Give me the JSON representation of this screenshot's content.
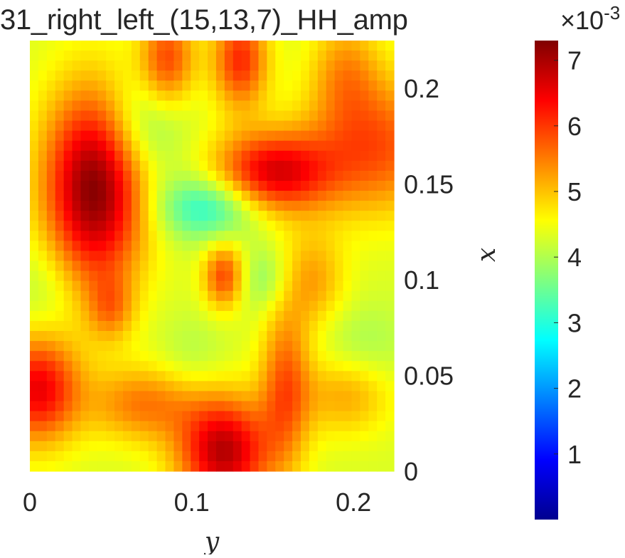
{
  "chart_data": {
    "type": "heatmap",
    "title": "31_right_left_(15,13,7)_HH_amp",
    "xlabel": "y",
    "ylabel": "x",
    "y_axis_position": "right",
    "x_range": [
      0,
      0.225
    ],
    "y_range": [
      0,
      0.225
    ],
    "x_ticks": [
      "0",
      "0.1",
      "0.2"
    ],
    "x_tick_values": [
      0,
      0.1,
      0.2
    ],
    "y_ticks": [
      "0",
      "0.05",
      "0.1",
      "0.15",
      "0.2"
    ],
    "y_tick_values": [
      0,
      0.05,
      0.1,
      0.15,
      0.2
    ],
    "grid": false,
    "colormap": "jet",
    "colorbar": {
      "range": [
        0,
        0.0073
      ],
      "exponent_label": "×10",
      "exponent": "-3",
      "ticks": [
        "1",
        "2",
        "3",
        "4",
        "5",
        "6",
        "7"
      ],
      "tick_values": [
        1,
        2,
        3,
        4,
        5,
        6,
        7
      ]
    },
    "base_value": 4.3,
    "features": [
      {
        "y": 0.04,
        "x": 0.148,
        "sy": 0.022,
        "sx": 0.036,
        "amp": 3.0
      },
      {
        "y": 0.15,
        "x": 0.156,
        "sy": 0.026,
        "sx": 0.015,
        "amp": 2.3
      },
      {
        "y": 0.215,
        "x": 0.17,
        "sy": 0.03,
        "sx": 0.025,
        "amp": 1.5
      },
      {
        "y": 0.085,
        "x": 0.215,
        "sy": 0.012,
        "sx": 0.018,
        "amp": 1.6
      },
      {
        "y": 0.13,
        "x": 0.215,
        "sy": 0.012,
        "sx": 0.018,
        "amp": 1.8
      },
      {
        "y": 0.195,
        "x": 0.21,
        "sy": 0.015,
        "sx": 0.02,
        "amp": 0.9
      },
      {
        "y": 0.005,
        "x": 0.043,
        "sy": 0.018,
        "sx": 0.02,
        "amp": 2.2
      },
      {
        "y": 0.07,
        "x": 0.035,
        "sy": 0.024,
        "sx": 0.014,
        "amp": 1.2
      },
      {
        "y": 0.12,
        "x": 0.01,
        "sy": 0.02,
        "sx": 0.02,
        "amp": 2.6
      },
      {
        "y": 0.158,
        "x": 0.045,
        "sy": 0.011,
        "sx": 0.03,
        "amp": 1.4
      },
      {
        "y": 0.195,
        "x": 0.04,
        "sy": 0.02,
        "sx": 0.015,
        "amp": 0.9
      },
      {
        "y": 0.12,
        "x": 0.102,
        "sy": 0.009,
        "sx": 0.012,
        "amp": 1.6
      },
      {
        "y": 0.175,
        "x": 0.1,
        "sy": 0.014,
        "sx": 0.018,
        "amp": 0.9
      },
      {
        "y": 0.05,
        "x": 0.085,
        "sy": 0.01,
        "sx": 0.012,
        "amp": 0.9
      },
      {
        "y": 0.11,
        "x": 0.138,
        "sy": 0.022,
        "sx": 0.012,
        "amp": -1.4
      },
      {
        "y": 0.07,
        "x": 0.18,
        "sy": 0.018,
        "sx": 0.02,
        "amp": -0.9
      },
      {
        "y": 0.145,
        "x": 0.1,
        "sy": 0.012,
        "sx": 0.012,
        "amp": -0.6
      },
      {
        "y": 0.01,
        "x": 0.095,
        "sy": 0.015,
        "sx": 0.02,
        "amp": -0.4
      },
      {
        "y": 0.205,
        "x": 0.065,
        "sy": 0.02,
        "sx": 0.015,
        "amp": -0.4
      },
      {
        "y": 0.1,
        "x": 0.06,
        "sy": 0.015,
        "sx": 0.015,
        "amp": -0.3
      }
    ]
  }
}
